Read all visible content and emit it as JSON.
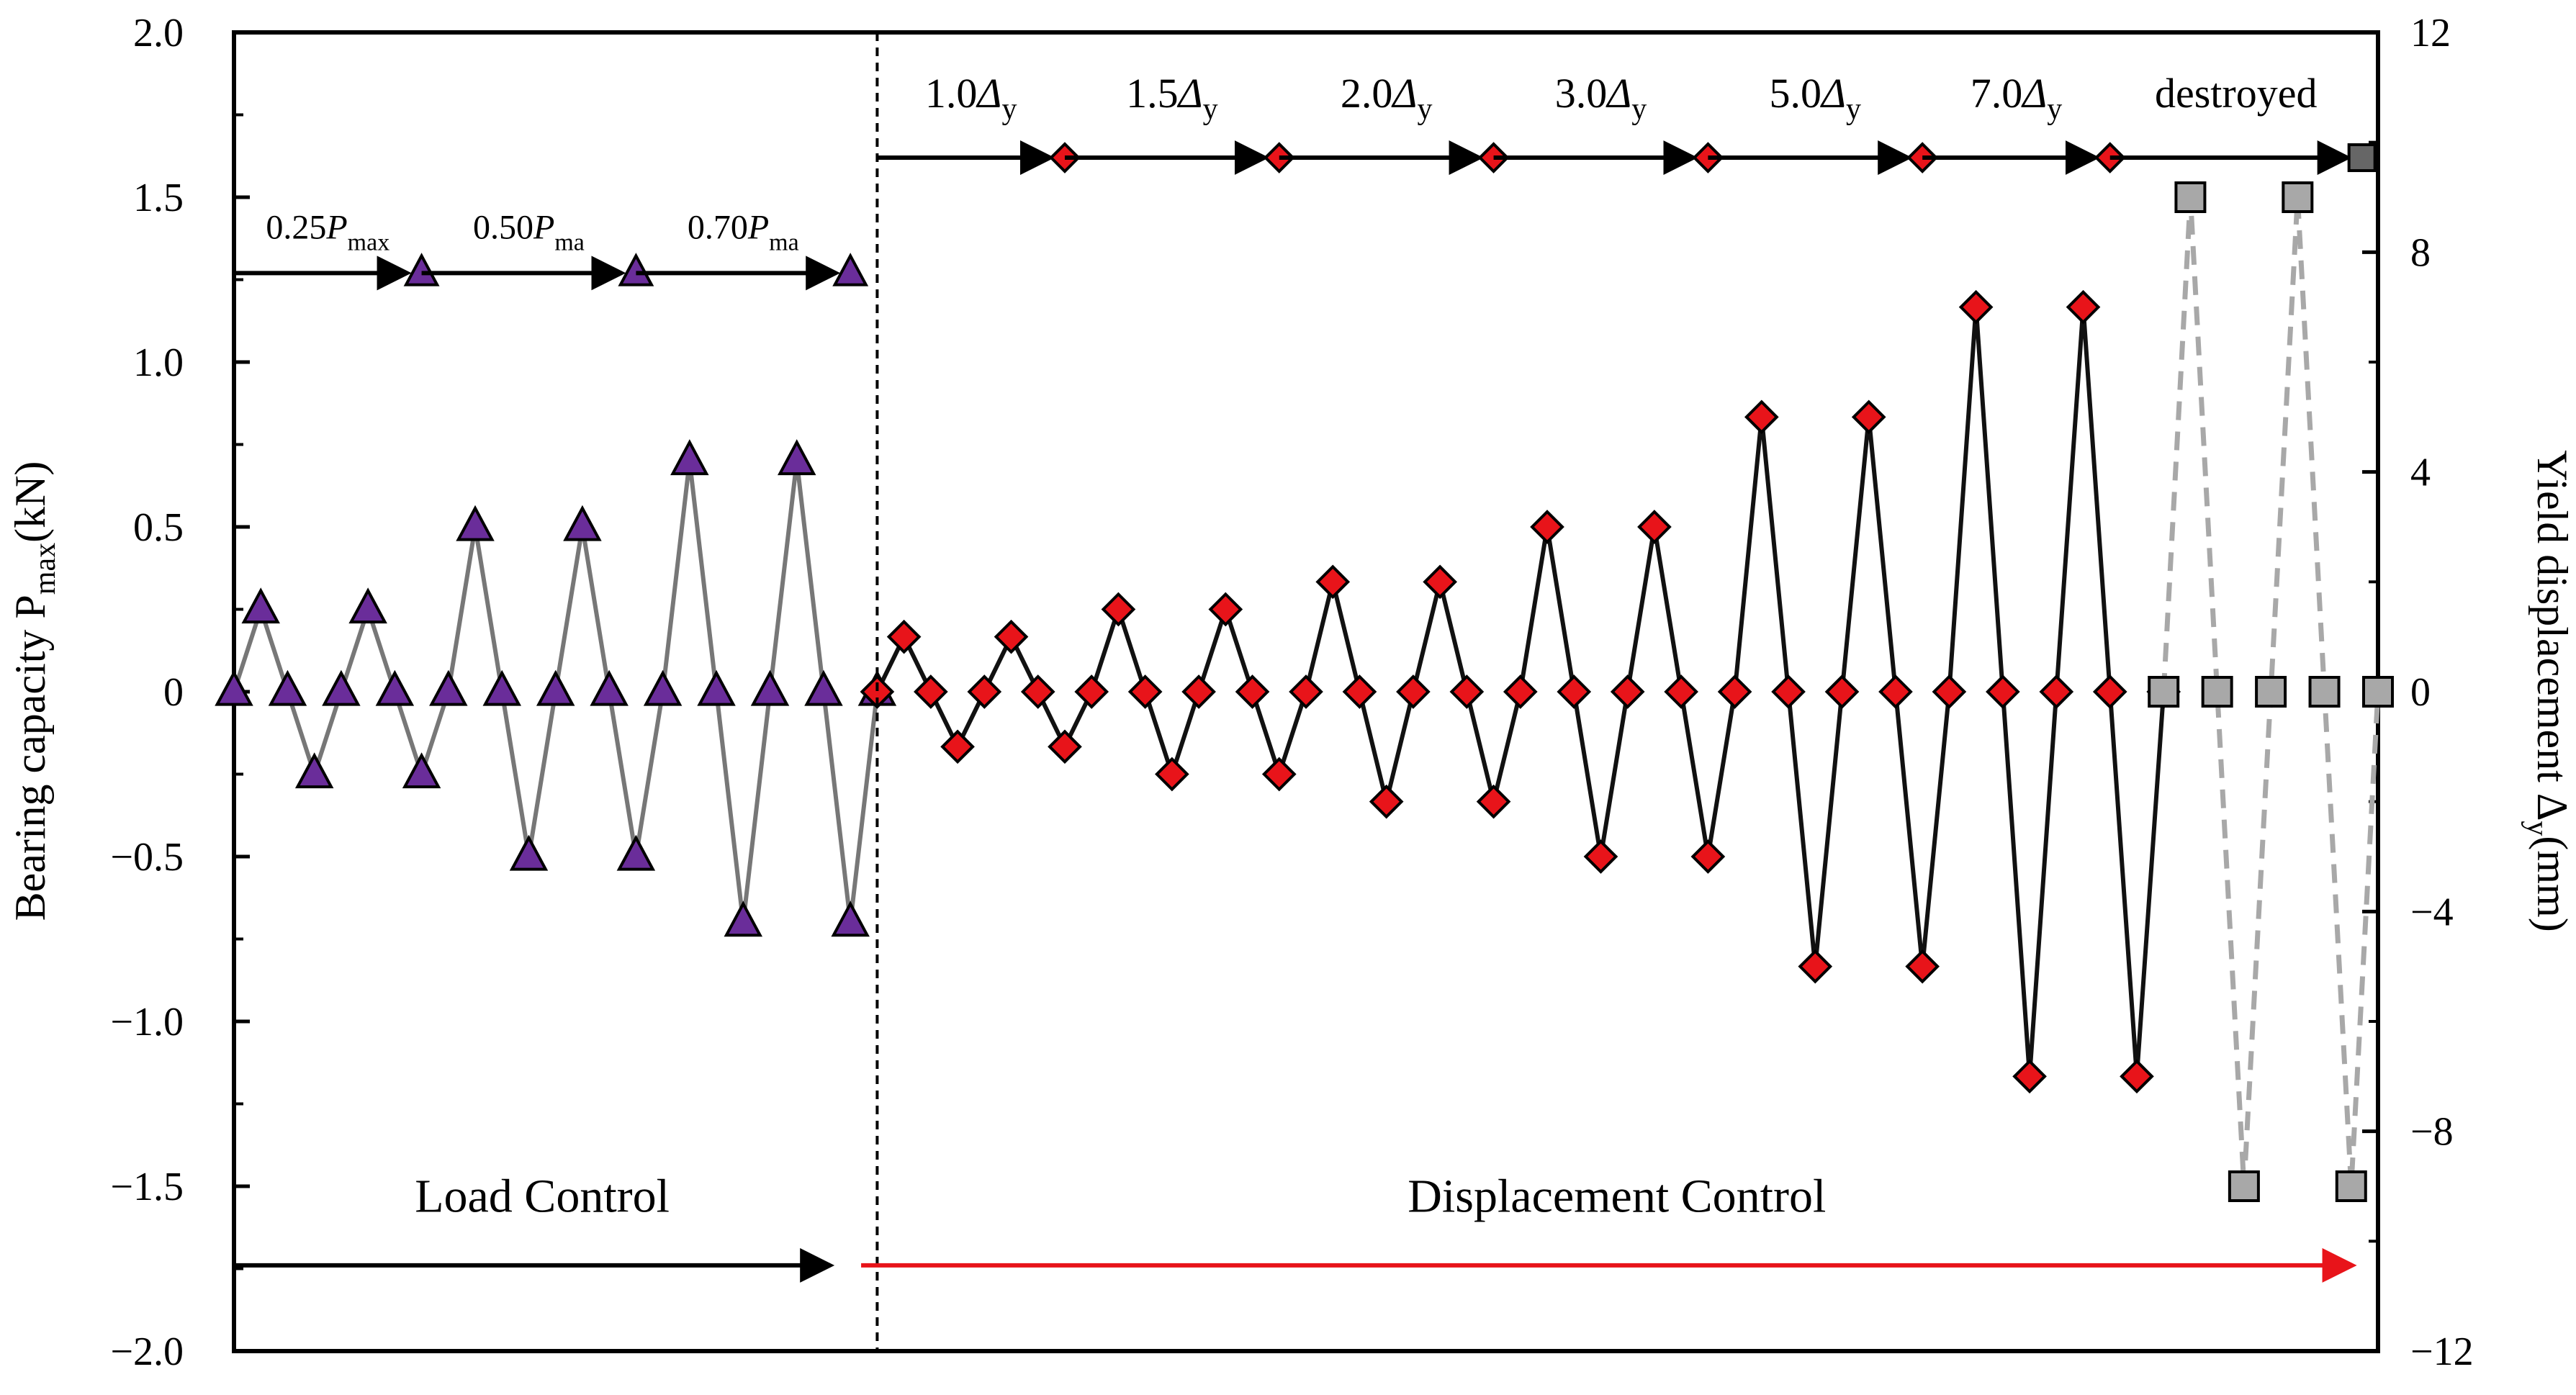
{
  "chart_data": {
    "type": "line",
    "title": "",
    "left_axis": {
      "label": "Bearing capacity P",
      "label_sub": "max",
      "label_suffix": "(kN)",
      "ylim": [
        -2.0,
        2.0
      ],
      "ticks": [
        2.0,
        1.5,
        1.0,
        0.5,
        0,
        -0.5,
        -1.0,
        -1.5,
        -2.0
      ],
      "tick_labels": [
        "2.0",
        "1.5",
        "1.0",
        "0.5",
        "0",
        "−0.5",
        "−1.0",
        "−1.5",
        "−2.0"
      ]
    },
    "right_axis": {
      "label": "Yield displacement Δ",
      "label_sub": "y",
      "label_suffix": "(mm)",
      "ylim": [
        -12,
        12
      ],
      "ticks": [
        12,
        8,
        4,
        0,
        -4,
        -8,
        -12
      ],
      "tick_labels": [
        "12",
        "8",
        "4",
        "0",
        "−4",
        "−8",
        "−12"
      ]
    },
    "x_range": [
      0,
      40
    ],
    "divider_x": 12,
    "series": [
      {
        "name": "Load control",
        "axis": "left",
        "marker": "triangle",
        "marker_color": "#6a2d9a",
        "line_color": "#777777",
        "line_style": "solid",
        "x": [
          0,
          0.5,
          1,
          1.5,
          2,
          2.5,
          3,
          3.5,
          4,
          4.5,
          5,
          5.5,
          6,
          6.5,
          7,
          7.5,
          8,
          8.5,
          9,
          9.5,
          10,
          10.5,
          11,
          11.5,
          12
        ],
        "y": [
          0,
          0.25,
          0,
          -0.25,
          0,
          0.25,
          0,
          -0.25,
          0,
          0.5,
          0,
          -0.5,
          0,
          0.5,
          0,
          -0.5,
          0,
          0.7,
          0,
          -0.7,
          0,
          0.7,
          0,
          -0.7,
          0
        ]
      },
      {
        "name": "Displacement control",
        "axis": "right",
        "marker": "diamond",
        "marker_color": "#e8141a",
        "line_color": "#111111",
        "line_style": "solid",
        "x": [
          12,
          12.5,
          13,
          13.5,
          14,
          14.5,
          15,
          15.5,
          16,
          16.5,
          17,
          17.5,
          18,
          18.5,
          19,
          19.5,
          20,
          20.5,
          21,
          21.5,
          22,
          22.5,
          23,
          23.5,
          24,
          24.5,
          25,
          25.5,
          26,
          26.5,
          27,
          27.5,
          28,
          28.5,
          29,
          29.5,
          30,
          30.5,
          31,
          31.5,
          32,
          32.5,
          33,
          33.5,
          34,
          34.5,
          35,
          35.5,
          36
        ],
        "y": [
          0,
          1,
          0,
          -1,
          0,
          1,
          0,
          -1,
          0,
          1.5,
          0,
          -1.5,
          0,
          1.5,
          0,
          -1.5,
          0,
          2,
          0,
          -2,
          0,
          2,
          0,
          -2,
          0,
          3,
          0,
          -3,
          0,
          3,
          0,
          -3,
          0,
          5,
          0,
          -5,
          0,
          5,
          0,
          -5,
          0,
          7,
          0,
          -7,
          0,
          7,
          0,
          -7,
          0
        ]
      },
      {
        "name": "Destroyed",
        "axis": "right",
        "marker": "square",
        "marker_color": "#a8a8a8",
        "line_color": "#a8a8a8",
        "line_style": "dashed",
        "x": [
          36,
          36.5,
          37,
          37.5,
          38,
          38.5,
          39,
          39.5,
          40
        ],
        "y": [
          0,
          9,
          0,
          -9,
          0,
          9,
          0,
          -9,
          0
        ]
      }
    ],
    "load_stages": [
      {
        "prefix": "0.25",
        "var": "P",
        "sub": "max",
        "x_start": 0,
        "x_end": 3.5
      },
      {
        "prefix": "0.50",
        "var": "P",
        "sub": "ma",
        "x_start": 3.5,
        "x_end": 7.5
      },
      {
        "prefix": "0.70",
        "var": "P",
        "sub": "ma",
        "x_start": 7.5,
        "x_end": 11.5
      }
    ],
    "load_stage_level": 1.27,
    "disp_stages": [
      {
        "prefix": "1.0",
        "var": "Δ",
        "sub": "y",
        "x_start": 12,
        "x_end": 15.5
      },
      {
        "prefix": "1.5",
        "var": "Δ",
        "sub": "y",
        "x_start": 15.5,
        "x_end": 19.5
      },
      {
        "prefix": "2.0",
        "var": "Δ",
        "sub": "y",
        "x_start": 19.5,
        "x_end": 23.5
      },
      {
        "prefix": "3.0",
        "var": "Δ",
        "sub": "y",
        "x_start": 23.5,
        "x_end": 27.5
      },
      {
        "prefix": "5.0",
        "var": "Δ",
        "sub": "y",
        "x_start": 27.5,
        "x_end": 31.5
      },
      {
        "prefix": "7.0",
        "var": "Δ",
        "sub": "y",
        "x_start": 31.5,
        "x_end": 35
      },
      {
        "prefix": "destroyed",
        "var": "",
        "sub": "",
        "x_start": 35,
        "x_end": 39.7
      }
    ],
    "disp_stage_level": 1.62,
    "phases": [
      {
        "label": "Load Control",
        "x_start": 0,
        "x_end": 11.5,
        "arrow_color": "#000000"
      },
      {
        "label": "Displacement Control",
        "x_start": 11.7,
        "x_end": 39.9,
        "arrow_color": "#e8141a"
      }
    ],
    "phase_label_level": -1.53,
    "phase_arrow_level": -1.74
  }
}
